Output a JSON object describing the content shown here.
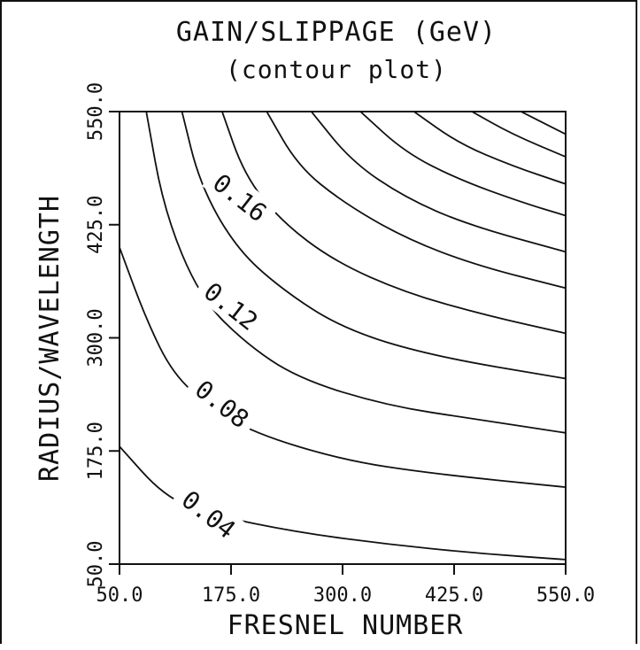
{
  "chart_data": {
    "type": "contour",
    "title": "GAIN/SLIPPAGE (GeV)",
    "subtitle": "(contour plot)",
    "xlabel": "FRESNEL NUMBER",
    "ylabel": "RADIUS/WAVELENGTH",
    "xlim": [
      50,
      550
    ],
    "ylim": [
      50,
      550
    ],
    "xticks": [
      "50.0",
      "175.0",
      "300.0",
      "425.0",
      "550.0"
    ],
    "yticks": [
      "50.0",
      "175.0",
      "300.0",
      "425.0",
      "550.0"
    ],
    "contour_labels": [
      {
        "text": "0.04",
        "x": 150,
        "y": 105
      },
      {
        "text": "0.08",
        "x": 165,
        "y": 227
      },
      {
        "text": "0.12",
        "x": 175,
        "y": 335
      },
      {
        "text": "0.16",
        "x": 185,
        "y": 455
      }
    ],
    "contours": [
      {
        "points": [
          [
            50,
            180
          ],
          [
            100,
            125
          ],
          [
            150,
            105
          ],
          [
            250,
            85
          ],
          [
            350,
            72
          ],
          [
            450,
            62
          ],
          [
            550,
            55
          ]
        ]
      },
      {
        "points": [
          [
            50,
            400
          ],
          [
            80,
            320
          ],
          [
            110,
            260
          ],
          [
            150,
            225
          ],
          [
            200,
            195
          ],
          [
            300,
            165
          ],
          [
            400,
            150
          ],
          [
            550,
            135
          ]
        ]
      },
      {
        "points": [
          [
            80,
            550
          ],
          [
            100,
            440
          ],
          [
            140,
            345
          ],
          [
            190,
            295
          ],
          [
            250,
            255
          ],
          [
            350,
            225
          ],
          [
            450,
            210
          ],
          [
            550,
            195
          ]
        ]
      },
      {
        "points": [
          [
            120,
            550
          ],
          [
            140,
            470
          ],
          [
            180,
            400
          ],
          [
            230,
            355
          ],
          [
            300,
            310
          ],
          [
            400,
            280
          ],
          [
            550,
            255
          ]
        ]
      },
      {
        "points": [
          [
            165,
            550
          ],
          [
            190,
            480
          ],
          [
            230,
            430
          ],
          [
            290,
            385
          ],
          [
            370,
            350
          ],
          [
            460,
            325
          ],
          [
            550,
            305
          ]
        ]
      },
      {
        "points": [
          [
            215,
            550
          ],
          [
            250,
            490
          ],
          [
            300,
            450
          ],
          [
            370,
            410
          ],
          [
            450,
            380
          ],
          [
            550,
            355
          ]
        ]
      },
      {
        "points": [
          [
            265,
            550
          ],
          [
            310,
            495
          ],
          [
            370,
            455
          ],
          [
            440,
            425
          ],
          [
            550,
            395
          ]
        ]
      },
      {
        "points": [
          [
            320,
            550
          ],
          [
            370,
            505
          ],
          [
            430,
            475
          ],
          [
            500,
            450
          ],
          [
            550,
            435
          ]
        ]
      },
      {
        "points": [
          [
            380,
            550
          ],
          [
            430,
            515
          ],
          [
            490,
            490
          ],
          [
            550,
            470
          ]
        ]
      },
      {
        "points": [
          [
            445,
            550
          ],
          [
            490,
            525
          ],
          [
            550,
            500
          ]
        ]
      },
      {
        "points": [
          [
            500,
            550
          ],
          [
            530,
            535
          ],
          [
            550,
            525
          ]
        ]
      }
    ],
    "grid": false
  }
}
